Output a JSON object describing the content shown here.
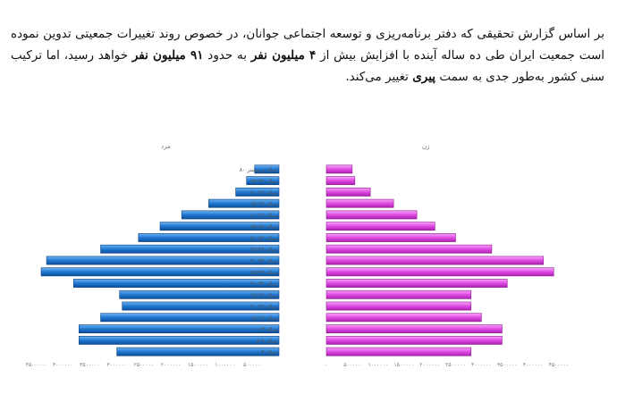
{
  "paragraph": {
    "s1": "بر اساس گزارش تحقیقی که  دفتر برنامه‌ریزی و توسعه اجتماعی جوانان، در خصوص روند تغییرات جمعیتی تدوین نموده است  جمعیت ایران طی ده ساله آینده با افزایش بیش از ",
    "b1": "۴ میلیون نفر",
    "s2": " به حدود ",
    "b2": "۹۱ میلیون نفر",
    "s3": " خواهد رسید، اما ترکیب سنی کشور به‌طور جدی به سمت ",
    "b3": "پیری",
    "s4": " تغییر می‌کند."
  },
  "chart_data": {
    "type": "bar",
    "subtype": "population-pyramid",
    "left_title": "مرد",
    "right_title": "زن",
    "categories": [
      "۰-۴ ساله",
      "۵-۹ ساله",
      "۱۰-۱۴ ساله",
      "۱۵-۱۹ ساله",
      "۲۰-۲۴ ساله",
      "۲۵-۲۹ ساله",
      "۳۰-۳۴ ساله",
      "۳۵-۳۹ ساله",
      "۴۰-۴۴ ساله",
      "۴۵-۴۹ ساله",
      "۵۰-۵۴ ساله",
      "۵۵-۵۹ ساله",
      "۶۰-۶۴ ساله",
      "۶۵-۶۹ ساله",
      "۷۰-۷۴ ساله",
      "۷۵-۷۹ ساله",
      "۸۰ ساله و بیشتر"
    ],
    "series": [
      {
        "name": "مرد",
        "color": "#1f78d1",
        "values": [
          3000000,
          3700000,
          3700000,
          3300000,
          2900000,
          2950000,
          3800000,
          4400000,
          4300000,
          3300000,
          2600000,
          2200000,
          1800000,
          1300000,
          800000,
          600000,
          450000
        ]
      },
      {
        "name": "زن",
        "color": "#e04ae4",
        "values": [
          2800000,
          3400000,
          3400000,
          3000000,
          2800000,
          2800000,
          3500000,
          4400000,
          4200000,
          3200000,
          2500000,
          2100000,
          1750000,
          1300000,
          850000,
          550000,
          500000
        ]
      }
    ],
    "left_ticks": [
      "۴۵۰۰۰۰۰",
      "۴۰۰۰۰۰۰",
      "۳۵۰۰۰۰۰",
      "۳۰۰۰۰۰۰",
      "۲۵۰۰۰۰۰",
      "۲۰۰۰۰۰۰",
      "۱۵۰۰۰۰۰",
      "۱۰۰۰۰۰۰",
      "۵۰۰۰۰۰"
    ],
    "right_ticks": [
      "۰",
      "۵۰۰۰۰۰",
      "۱۰۰۰۰۰۰",
      "۱۵۰۰۰۰۰",
      "۲۰۰۰۰۰۰",
      "۲۵۰۰۰۰۰",
      "۳۰۰۰۰۰۰",
      "۳۵۰۰۰۰۰",
      "۴۰۰۰۰۰۰",
      "۴۵۰۰۰۰۰"
    ],
    "xlim": [
      0,
      4500000
    ]
  }
}
